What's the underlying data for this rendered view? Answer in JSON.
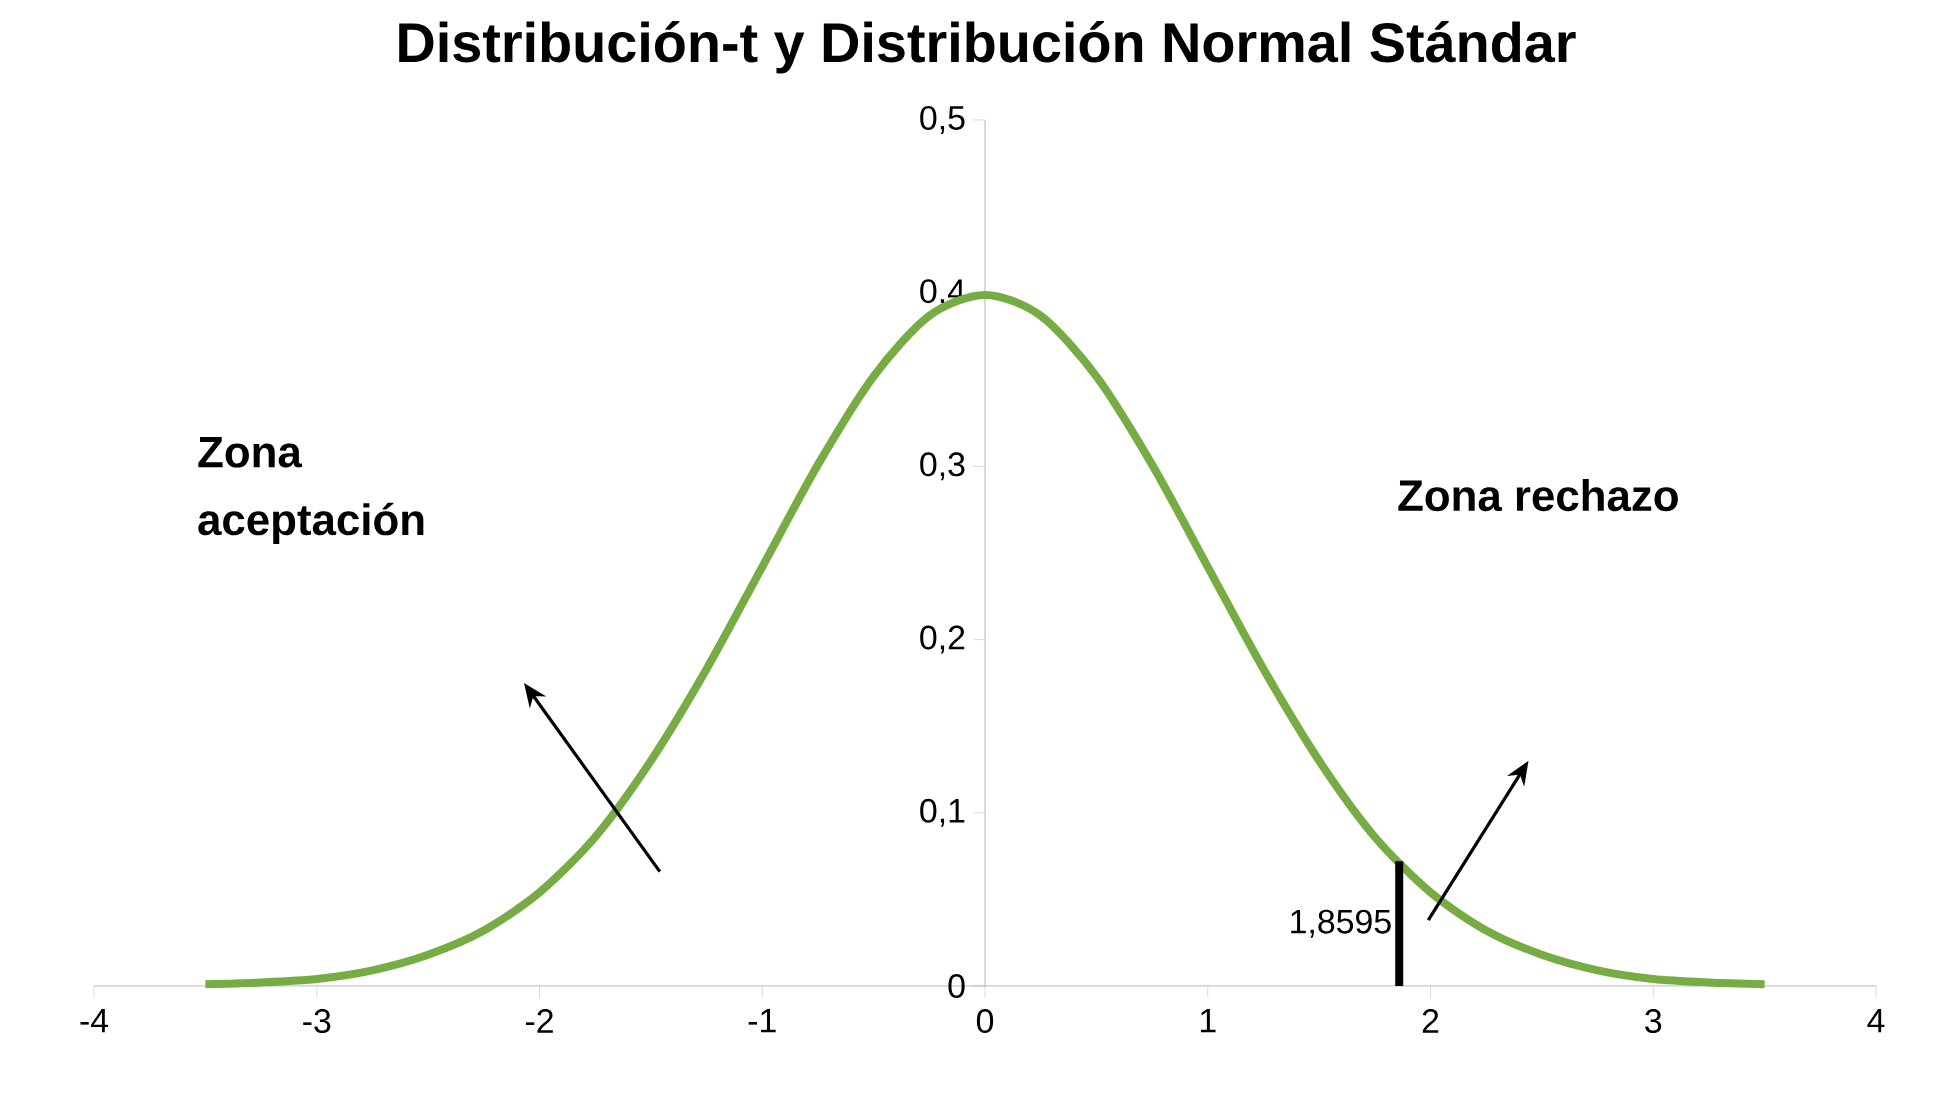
{
  "chart_data": {
    "type": "line",
    "title": "Distribución-t y Distribución Normal Stándar",
    "x": [
      -3.5,
      -3.25,
      -3,
      -2.75,
      -2.5,
      -2.25,
      -2,
      -1.75,
      -1.5,
      -1.25,
      -1,
      -0.75,
      -0.5,
      -0.25,
      0,
      0.25,
      0.5,
      0.75,
      1,
      1.25,
      1.5,
      1.75,
      2,
      2.25,
      2.5,
      2.75,
      3,
      3.25,
      3.5
    ],
    "series": [
      {
        "color": "#77ab43",
        "values": [
          0.001,
          0.002,
          0.004,
          0.009,
          0.018,
          0.032,
          0.054,
          0.086,
          0.13,
          0.183,
          0.242,
          0.301,
          0.352,
          0.387,
          0.399,
          0.387,
          0.352,
          0.301,
          0.242,
          0.183,
          0.13,
          0.086,
          0.054,
          0.032,
          0.018,
          0.009,
          0.004,
          0.002,
          0.001
        ]
      }
    ],
    "xlim": [
      -4,
      4
    ],
    "ylim": [
      0,
      0.5
    ],
    "xticks": [
      -4,
      -3,
      -2,
      -1,
      0,
      1,
      2,
      3,
      4
    ],
    "yticks": [
      0,
      {
        "value": 0.1,
        "label": "0,1"
      },
      {
        "value": 0.2,
        "label": "0,2"
      },
      {
        "value": 0.3,
        "label": "0,3"
      },
      {
        "value": 0.4,
        "label": "0,4"
      },
      {
        "value": 0.5,
        "label": "0,5"
      }
    ],
    "ref_lines": [
      {
        "axis": "x",
        "value": 1.8595,
        "label": "1,8595",
        "color": "#000000"
      }
    ],
    "annotations": [
      "Zona aceptación",
      "Zona rechazo"
    ],
    "grid": false,
    "marker": "none",
    "line_style": "solid"
  }
}
